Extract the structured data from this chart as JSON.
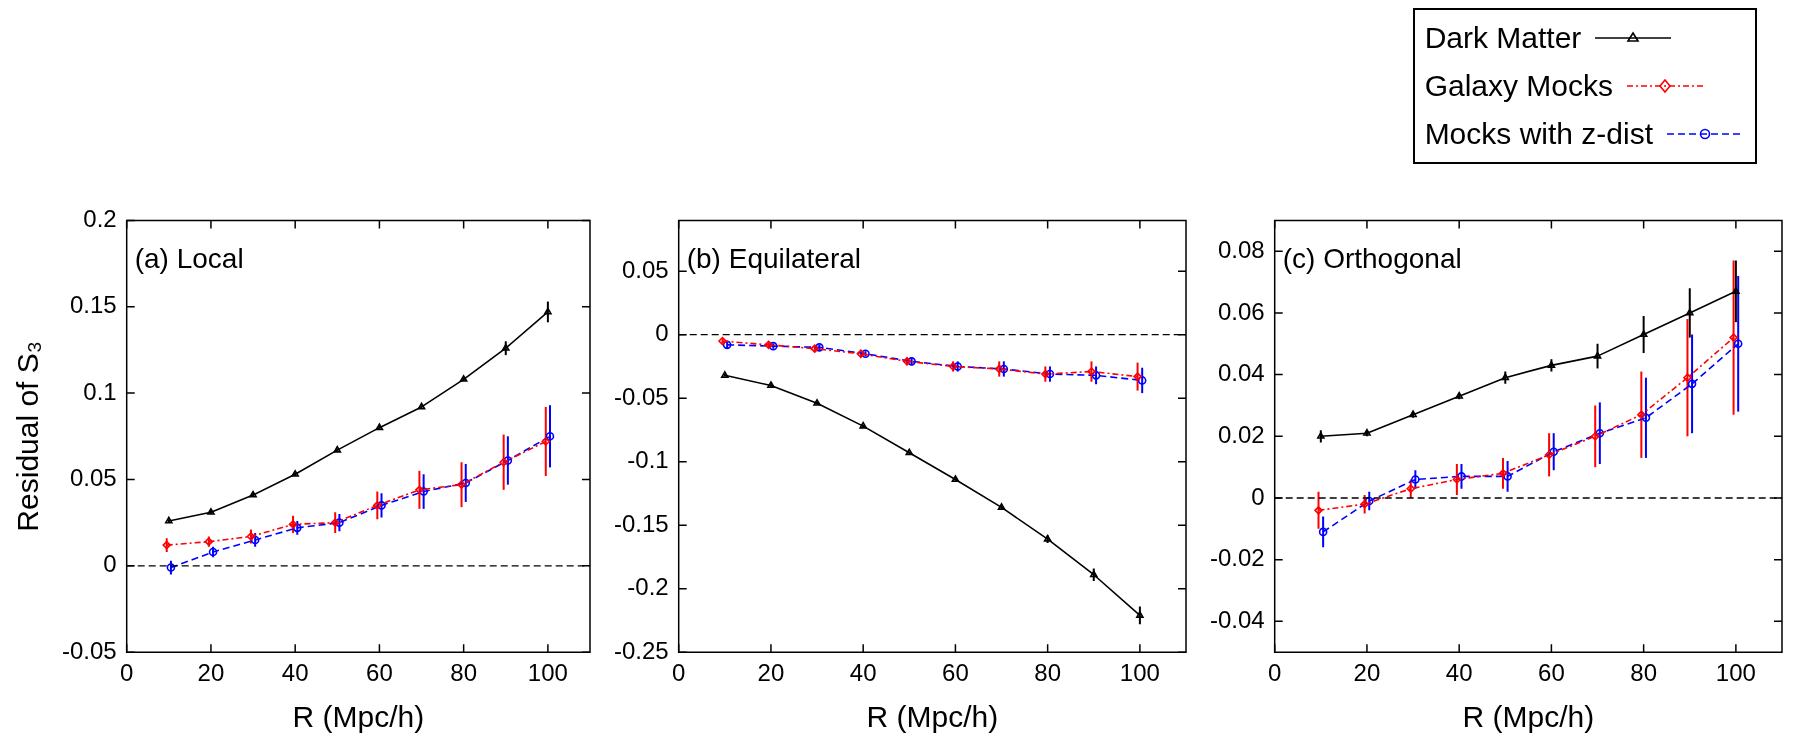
{
  "chart_data": [
    {
      "type": "line",
      "title": "(a) Local",
      "xlabel": "R (Mpc/h)",
      "ylabel": "Residual of S₃",
      "x": [
        10,
        20,
        30,
        40,
        50,
        60,
        70,
        80,
        90,
        100
      ],
      "xlim": [
        0,
        110
      ],
      "xticks": [
        0,
        20,
        40,
        60,
        80,
        100
      ],
      "ylim": [
        -0.05,
        0.2
      ],
      "yticks": [
        -0.05,
        0,
        0.05,
        0.1,
        0.15,
        0.2
      ],
      "grid": false,
      "legend": false,
      "ref_lines": [
        {
          "axis": "y",
          "value": 0,
          "color": "#000000",
          "line_style": "dashed"
        }
      ],
      "series": [
        {
          "color": "#000000",
          "marker": "triangle",
          "line_style": "solid",
          "values": [
            0.026,
            0.031,
            0.041,
            0.053,
            0.067,
            0.08,
            0.092,
            0.108,
            0.126,
            0.147
          ],
          "errors": [
            0.001,
            0.001,
            0.001,
            0.001,
            0.001,
            0.001,
            0.001,
            0.001,
            0.004,
            0.006
          ]
        },
        {
          "color": "#ff0000",
          "marker": "diamond",
          "line_style": "dotted",
          "x": [
            9.5,
            19.5,
            29.5,
            39.5,
            49.5,
            59.5,
            69.5,
            79.5,
            89.5,
            99.5
          ],
          "values": [
            0.012,
            0.014,
            0.017,
            0.024,
            0.025,
            0.035,
            0.044,
            0.047,
            0.06,
            0.072
          ],
          "errors": [
            0.004,
            0.003,
            0.004,
            0.005,
            0.006,
            0.008,
            0.011,
            0.013,
            0.016,
            0.02
          ]
        },
        {
          "color": "#0000ff",
          "marker": "circle",
          "line_style": "dashed",
          "x": [
            10.5,
            20.5,
            30.5,
            40.5,
            50.5,
            60.5,
            70.5,
            80.5,
            90.5,
            100.5
          ],
          "values": [
            -0.001,
            0.008,
            0.015,
            0.022,
            0.025,
            0.035,
            0.043,
            0.048,
            0.061,
            0.075
          ],
          "errors": [
            0.004,
            0.003,
            0.004,
            0.004,
            0.005,
            0.007,
            0.01,
            0.011,
            0.014,
            0.018
          ]
        }
      ]
    },
    {
      "type": "line",
      "title": "(b) Equilateral",
      "xlabel": "R (Mpc/h)",
      "x": [
        10,
        20,
        30,
        40,
        50,
        60,
        70,
        80,
        90,
        100
      ],
      "xlim": [
        0,
        110
      ],
      "xticks": [
        0,
        20,
        40,
        60,
        80,
        100
      ],
      "ylim": [
        -0.25,
        0.09
      ],
      "yticks": [
        -0.25,
        -0.2,
        -0.15,
        -0.1,
        -0.05,
        0,
        0.05
      ],
      "grid": false,
      "legend": false,
      "ref_lines": [
        {
          "axis": "y",
          "value": 0,
          "color": "#000000",
          "line_style": "dashed"
        }
      ],
      "series": [
        {
          "color": "#000000",
          "marker": "triangle",
          "line_style": "solid",
          "values": [
            -0.032,
            -0.04,
            -0.054,
            -0.072,
            -0.093,
            -0.114,
            -0.136,
            -0.161,
            -0.189,
            -0.221
          ],
          "errors": [
            0.001,
            0.001,
            0.001,
            0.001,
            0.001,
            0.001,
            0.002,
            0.003,
            0.005,
            0.007
          ]
        },
        {
          "color": "#ff0000",
          "marker": "diamond",
          "line_style": "dotted",
          "x": [
            9.5,
            19.5,
            29.5,
            39.5,
            49.5,
            59.5,
            69.5,
            79.5,
            89.5,
            99.5
          ],
          "values": [
            -0.005,
            -0.008,
            -0.011,
            -0.015,
            -0.021,
            -0.025,
            -0.027,
            -0.031,
            -0.029,
            -0.033
          ],
          "errors": [
            0.002,
            0.002,
            0.002,
            0.002,
            0.003,
            0.004,
            0.006,
            0.006,
            0.008,
            0.011
          ]
        },
        {
          "color": "#0000ff",
          "marker": "circle",
          "line_style": "dashed",
          "x": [
            10.5,
            20.5,
            30.5,
            40.5,
            50.5,
            60.5,
            70.5,
            80.5,
            90.5,
            100.5
          ],
          "values": [
            -0.008,
            -0.009,
            -0.01,
            -0.015,
            -0.021,
            -0.025,
            -0.027,
            -0.031,
            -0.032,
            -0.036
          ],
          "errors": [
            0.003,
            0.002,
            0.002,
            0.002,
            0.003,
            0.004,
            0.006,
            0.006,
            0.007,
            0.01
          ]
        }
      ]
    },
    {
      "type": "line",
      "title": "(c) Orthogonal",
      "xlabel": "R (Mpc/h)",
      "x": [
        10,
        20,
        30,
        40,
        50,
        60,
        70,
        80,
        90,
        100
      ],
      "xlim": [
        0,
        110
      ],
      "xticks": [
        0,
        20,
        40,
        60,
        80,
        100
      ],
      "ylim": [
        -0.05,
        0.09
      ],
      "yticks": [
        -0.04,
        -0.02,
        0,
        0.02,
        0.04,
        0.06,
        0.08
      ],
      "grid": false,
      "legend": "top right",
      "ref_lines": [
        {
          "axis": "y",
          "value": 0,
          "color": "#000000",
          "line_style": "dashed"
        }
      ],
      "series": [
        {
          "name": "Dark Matter",
          "color": "#000000",
          "marker": "triangle",
          "line_style": "solid",
          "values": [
            0.02,
            0.021,
            0.027,
            0.033,
            0.039,
            0.043,
            0.046,
            0.053,
            0.06,
            0.067
          ],
          "errors": [
            0.002,
            0.001,
            0.001,
            0.001,
            0.002,
            0.002,
            0.004,
            0.006,
            0.008,
            0.01
          ]
        },
        {
          "name": "Galaxy Mocks",
          "color": "#ff0000",
          "marker": "diamond",
          "line_style": "dotted",
          "x": [
            9.5,
            19.5,
            29.5,
            39.5,
            49.5,
            59.5,
            69.5,
            79.5,
            89.5,
            99.5
          ],
          "values": [
            -0.004,
            -0.002,
            0.003,
            0.006,
            0.008,
            0.014,
            0.02,
            0.027,
            0.039,
            0.052
          ],
          "errors": [
            0.006,
            0.003,
            0.003,
            0.005,
            0.005,
            0.007,
            0.01,
            0.014,
            0.019,
            0.025
          ]
        },
        {
          "name": "Mocks with z-dist",
          "color": "#0000ff",
          "marker": "circle",
          "line_style": "dashed",
          "x": [
            10.5,
            20.5,
            30.5,
            40.5,
            50.5,
            60.5,
            70.5,
            80.5,
            90.5,
            100.5
          ],
          "values": [
            -0.011,
            -0.001,
            0.006,
            0.007,
            0.007,
            0.015,
            0.021,
            0.026,
            0.037,
            0.05
          ],
          "errors": [
            0.005,
            0.003,
            0.003,
            0.004,
            0.005,
            0.006,
            0.01,
            0.013,
            0.016,
            0.022
          ]
        }
      ]
    }
  ]
}
